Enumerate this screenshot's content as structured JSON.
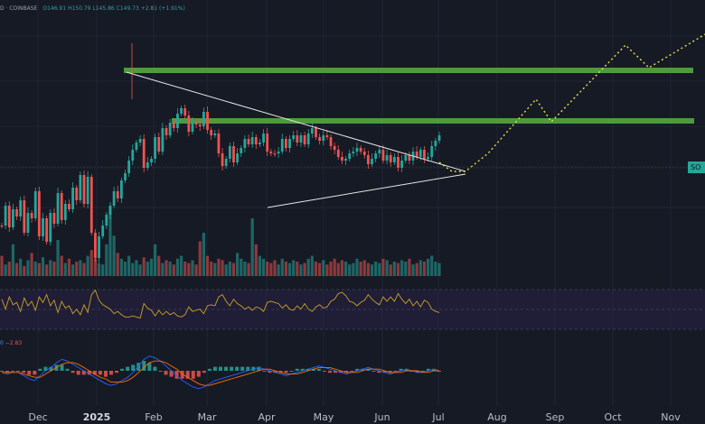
{
  "header": {
    "symbol": "D · COINBASE",
    "ohlc": "O146.91 H150.79 L145.86 C149.73 +2.81 (+1.91%)"
  },
  "macd_header": {
    "value_a": "0",
    "value_b": "−2.83"
  },
  "price_tag": "SO",
  "colors": {
    "background": "#161a25",
    "up": "#26a69a",
    "down": "#ef5350",
    "zone": "#4f9a3f",
    "rsi": "#c9a227",
    "projection": "#e8e04a",
    "macd": "#2962ff",
    "signal": "#ff6d00"
  },
  "chart_data": {
    "type": "candlestick",
    "x_ticks": [
      {
        "label": "Dec",
        "bold": false
      },
      {
        "label": "2025",
        "bold": true
      },
      {
        "label": "Feb",
        "bold": false
      },
      {
        "label": "Mar",
        "bold": false
      },
      {
        "label": "Apr",
        "bold": false
      },
      {
        "label": "May",
        "bold": false
      },
      {
        "label": "Jun",
        "bold": false
      },
      {
        "label": "Jul",
        "bold": false
      },
      {
        "label": "Aug",
        "bold": false
      },
      {
        "label": "Sep",
        "bold": false
      },
      {
        "label": "Oct",
        "bold": false
      },
      {
        "label": "Nov",
        "bold": false
      }
    ],
    "price_path": [
      250,
      228,
      252,
      232,
      240,
      222,
      258,
      236,
      242,
      212,
      262,
      242,
      268,
      236,
      248,
      214,
      244,
      226,
      232,
      208,
      222,
      194,
      226,
      196,
      258,
      286,
      262,
      250,
      238,
      228,
      212,
      220,
      200,
      192,
      178,
      166,
      158,
      154,
      186,
      180,
      176,
      152,
      168,
      142,
      150,
      136,
      142,
      126,
      120,
      128,
      146,
      136,
      138,
      140,
      124,
      144,
      150,
      148,
      170,
      184,
      176,
      162,
      180,
      170,
      164,
      154,
      160,
      152,
      160,
      158,
      148,
      168,
      170,
      170,
      168,
      154,
      164,
      154,
      150,
      158,
      150,
      160,
      148,
      142,
      152,
      156,
      150,
      152,
      162,
      166,
      174,
      178,
      176,
      170,
      168,
      164,
      168,
      172,
      182,
      176,
      170,
      166,
      178,
      172,
      180,
      174,
      186,
      178,
      172,
      178,
      168,
      174,
      166,
      176,
      174,
      162,
      156,
      150
    ],
    "volume_path": [
      14,
      8,
      10,
      22,
      9,
      12,
      7,
      11,
      16,
      10,
      9,
      13,
      8,
      11,
      10,
      25,
      14,
      9,
      12,
      8,
      10,
      11,
      9,
      14,
      18,
      12,
      9,
      8,
      22,
      48,
      28,
      16,
      12,
      10,
      14,
      9,
      11,
      8,
      13,
      10,
      12,
      22,
      14,
      9,
      11,
      10,
      8,
      12,
      14,
      10,
      9,
      11,
      8,
      24,
      30,
      14,
      10,
      9,
      12,
      11,
      8,
      10,
      9,
      16,
      12,
      10,
      9,
      40,
      22,
      14,
      12,
      10,
      9,
      11,
      8,
      12,
      10,
      9,
      11,
      10,
      8,
      9,
      12,
      14,
      10,
      9,
      11,
      8,
      10,
      12,
      9,
      11,
      10,
      8,
      9,
      12,
      10,
      11,
      9,
      8,
      10,
      9,
      12,
      11,
      8,
      10,
      9,
      11,
      10,
      12,
      8,
      9,
      11,
      10,
      12,
      14,
      10,
      9
    ],
    "rsi_path": [
      62,
      44,
      66,
      52,
      56,
      40,
      64,
      50,
      58,
      42,
      66,
      56,
      70,
      50,
      60,
      38,
      58,
      46,
      50,
      36,
      44,
      34,
      52,
      38,
      70,
      78,
      60,
      52,
      48,
      44,
      36,
      40,
      34,
      30,
      30,
      32,
      30,
      28,
      54,
      46,
      42,
      32,
      42,
      34,
      40,
      34,
      38,
      32,
      30,
      34,
      48,
      40,
      42,
      44,
      36,
      50,
      52,
      50,
      66,
      70,
      58,
      50,
      62,
      54,
      50,
      44,
      48,
      42,
      48,
      46,
      40,
      56,
      58,
      56,
      54,
      46,
      52,
      44,
      42,
      50,
      44,
      54,
      44,
      40,
      48,
      52,
      46,
      48,
      58,
      62,
      72,
      74,
      68,
      58,
      56,
      50,
      56,
      60,
      70,
      62,
      56,
      52,
      66,
      58,
      66,
      58,
      72,
      62,
      54,
      62,
      50,
      58,
      48,
      60,
      56,
      44,
      40,
      38
    ],
    "macd_line": [
      -1,
      -2,
      -1,
      -1,
      -3,
      -5,
      -6,
      -3,
      0,
      2,
      5,
      7,
      6,
      4,
      2,
      0,
      -2,
      -4,
      -6,
      -8,
      -9,
      -8,
      -6,
      -4,
      -1,
      3,
      7,
      9,
      8,
      6,
      3,
      0,
      -3,
      -6,
      -8,
      -10,
      -11,
      -10,
      -8,
      -6,
      -5,
      -4,
      -3,
      -2,
      -1,
      0,
      1,
      2,
      1,
      0,
      -1,
      -2,
      -3,
      -2,
      -1,
      0,
      1,
      2,
      3,
      2,
      1,
      0,
      -1,
      -2,
      -1,
      0,
      1,
      2,
      1,
      0,
      -1,
      -2,
      -1,
      0,
      1,
      0,
      -1,
      -1,
      0,
      1,
      0
    ],
    "signal_line": [
      -1,
      -1,
      -1,
      -1,
      -2,
      -3,
      -4,
      -4,
      -2,
      0,
      2,
      4,
      5,
      5,
      4,
      2,
      0,
      -2,
      -4,
      -5,
      -7,
      -7,
      -7,
      -6,
      -4,
      -1,
      2,
      5,
      6,
      6,
      5,
      3,
      1,
      -2,
      -4,
      -6,
      -8,
      -9,
      -9,
      -8,
      -7,
      -6,
      -5,
      -4,
      -3,
      -2,
      -1,
      0,
      1,
      1,
      0,
      -1,
      -2,
      -2,
      -2,
      -1,
      0,
      1,
      2,
      2,
      2,
      1,
      0,
      -1,
      -1,
      -1,
      0,
      1,
      1,
      1,
      0,
      -1,
      -1,
      -1,
      0,
      0,
      0,
      -1,
      -1,
      0,
      0
    ]
  }
}
